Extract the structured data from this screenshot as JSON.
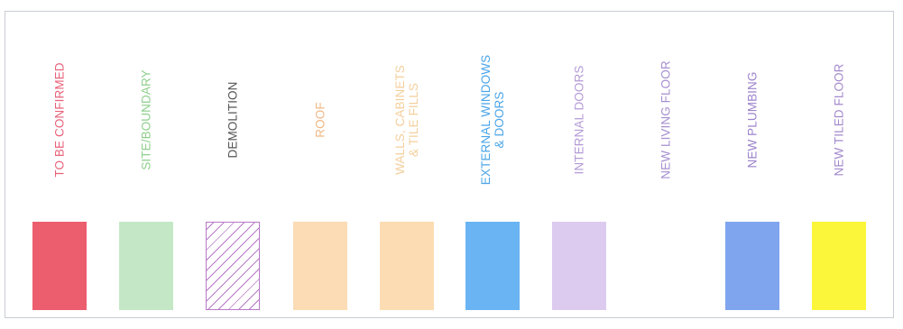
{
  "legend": {
    "items": [
      {
        "label": "TO BE CONFIRMED",
        "text_color": "#e8627a",
        "fill": "#ec5e6e",
        "pattern": "solid"
      },
      {
        "label": "SITE/BOUNDARY",
        "text_color": "#8fcf8c",
        "fill": "#c4e8c6",
        "pattern": "solid"
      },
      {
        "label": "DEMOLITION",
        "text_color": "#555555",
        "fill": "#ffffff",
        "pattern": "hatch"
      },
      {
        "label": "ROOF",
        "text_color": "#f0b886",
        "fill": "#fbdcb4",
        "pattern": "solid"
      },
      {
        "label": "WALLS, CABINETS\n& TILE FILLS",
        "text_color": "#f4cf9c",
        "fill": "#fcdcb2",
        "pattern": "solid"
      },
      {
        "label": "EXTERNAL WINDOWS\n& DOORS",
        "text_color": "#4aa5e8",
        "fill": "#6ab4f3",
        "pattern": "solid"
      },
      {
        "label": "INTERNAL DOORS",
        "text_color": "#b39ad6",
        "fill": "#dccbef",
        "pattern": "solid"
      },
      {
        "label": "NEW LIVING FLOOR",
        "text_color": "#a78fd0",
        "fill": "#ffffff",
        "pattern": "solid"
      },
      {
        "label": "NEW PLUMBING",
        "text_color": "#9c83cc",
        "fill": "#7fa5ef",
        "pattern": "solid"
      },
      {
        "label": "NEW TILED FLOOR",
        "text_color": "#a48acc",
        "fill": "#fcf63a",
        "pattern": "solid"
      }
    ]
  }
}
